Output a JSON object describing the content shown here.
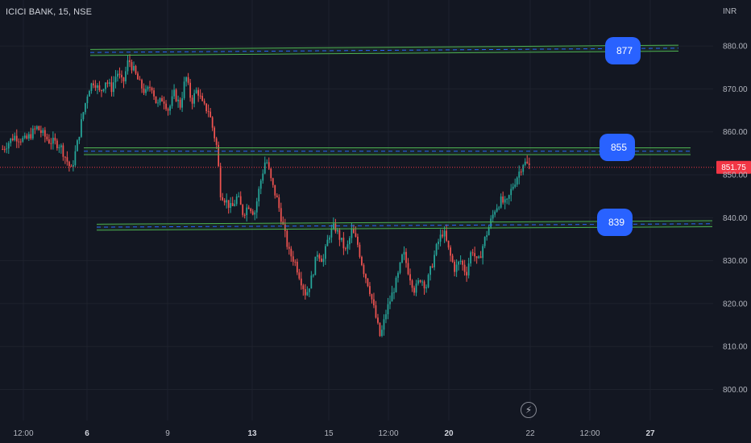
{
  "header": {
    "title": "ICICI BANK, 15, NSE",
    "currency": "INR"
  },
  "colors": {
    "background": "#131722",
    "up": "#26a69a",
    "down": "#ef5350",
    "zone_line": "#4caf50",
    "zone_dash": "#2962ff",
    "label_bg": "#2962ff",
    "price_tag": "#f23645",
    "axis_text": "#b2b5be",
    "grid": "#1e222d"
  },
  "icons": {
    "bolt": "lightning-bolt-icon"
  },
  "chart_data": {
    "type": "candlestick",
    "ylim": [
      797,
      888
    ],
    "y_ticks": [
      800,
      810,
      820,
      830,
      840,
      850,
      860,
      870,
      880
    ],
    "y_tick_labels": [
      "800.00",
      "810.00",
      "820.00",
      "830.00",
      "840.00",
      "850.00",
      "860.00",
      "870.00",
      "880.00"
    ],
    "x_ticks": [
      {
        "label": "12:00",
        "bold": false
      },
      {
        "label": "6",
        "bold": true
      },
      {
        "label": "9",
        "bold": false
      },
      {
        "label": "13",
        "bold": true
      },
      {
        "label": "15",
        "bold": false
      },
      {
        "label": "12:00",
        "bold": false
      },
      {
        "label": "20",
        "bold": true
      },
      {
        "label": "22",
        "bold": false
      },
      {
        "label": "12:00",
        "bold": false
      },
      {
        "label": "27",
        "bold": true
      }
    ],
    "last_price": {
      "value": 851.75,
      "label": "851.75"
    },
    "zones": [
      {
        "label": "877",
        "y_start": 878.5,
        "y_end": 879.5,
        "thickness": 1.4
      },
      {
        "label": "855",
        "y_start": 855.5,
        "y_end": 855.5,
        "thickness": 1.6
      },
      {
        "label": "839",
        "y_start": 837.8,
        "y_end": 838.6,
        "thickness": 1.4
      }
    ],
    "price_path": [
      [
        0,
        856
      ],
      [
        4,
        859
      ],
      [
        8,
        858
      ],
      [
        12,
        861
      ],
      [
        16,
        858
      ],
      [
        20,
        857
      ],
      [
        22,
        854
      ],
      [
        24,
        851
      ],
      [
        26,
        857
      ],
      [
        28,
        864
      ],
      [
        30,
        870
      ],
      [
        32,
        872
      ],
      [
        34,
        869
      ],
      [
        36,
        872
      ],
      [
        38,
        870
      ],
      [
        40,
        874
      ],
      [
        42,
        871
      ],
      [
        44,
        877
      ],
      [
        46,
        874
      ],
      [
        48,
        871
      ],
      [
        50,
        869
      ],
      [
        52,
        871
      ],
      [
        54,
        866
      ],
      [
        56,
        868
      ],
      [
        58,
        865
      ],
      [
        60,
        869
      ],
      [
        62,
        866
      ],
      [
        64,
        873
      ],
      [
        66,
        867
      ],
      [
        68,
        870
      ],
      [
        70,
        866
      ],
      [
        72,
        865
      ],
      [
        74,
        859
      ],
      [
        75,
        856
      ],
      [
        76,
        846
      ],
      [
        78,
        844
      ],
      [
        80,
        842
      ],
      [
        82,
        845
      ],
      [
        84,
        841
      ],
      [
        86,
        843
      ],
      [
        88,
        841
      ],
      [
        90,
        848
      ],
      [
        92,
        854
      ],
      [
        94,
        848
      ],
      [
        96,
        844
      ],
      [
        98,
        838
      ],
      [
        100,
        832
      ],
      [
        102,
        830
      ],
      [
        104,
        826
      ],
      [
        106,
        822
      ],
      [
        108,
        826
      ],
      [
        110,
        832
      ],
      [
        112,
        830
      ],
      [
        114,
        836
      ],
      [
        116,
        838
      ],
      [
        118,
        835
      ],
      [
        120,
        832
      ],
      [
        122,
        837
      ],
      [
        124,
        834
      ],
      [
        126,
        828
      ],
      [
        128,
        824
      ],
      [
        130,
        818
      ],
      [
        132,
        812
      ],
      [
        134,
        818
      ],
      [
        136,
        822
      ],
      [
        138,
        826
      ],
      [
        140,
        832
      ],
      [
        142,
        827
      ],
      [
        144,
        823
      ],
      [
        146,
        826
      ],
      [
        148,
        824
      ],
      [
        150,
        829
      ],
      [
        152,
        834
      ],
      [
        154,
        837
      ],
      [
        156,
        832
      ],
      [
        158,
        828
      ],
      [
        160,
        830
      ],
      [
        162,
        827
      ],
      [
        164,
        833
      ],
      [
        166,
        829
      ],
      [
        168,
        834
      ],
      [
        170,
        838
      ],
      [
        172,
        842
      ],
      [
        174,
        844
      ],
      [
        176,
        843
      ],
      [
        178,
        847
      ],
      [
        180,
        850
      ],
      [
        182,
        853
      ],
      [
        184,
        852
      ]
    ]
  }
}
